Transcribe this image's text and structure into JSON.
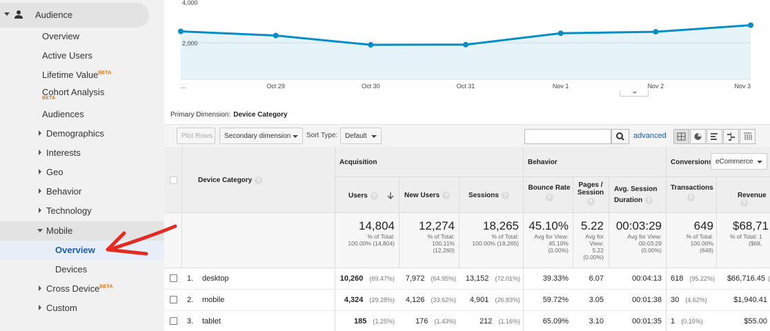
{
  "sidebar": {
    "audience": "Audience",
    "items": [
      {
        "label": "Overview"
      },
      {
        "label": "Active Users"
      },
      {
        "label": "Lifetime Value",
        "badge": "BETA"
      },
      {
        "label": "Cohort Analysis",
        "badge": "BETA"
      },
      {
        "label": "Audiences"
      },
      {
        "label": "Demographics"
      },
      {
        "label": "Interests"
      },
      {
        "label": "Geo"
      },
      {
        "label": "Behavior"
      },
      {
        "label": "Technology"
      },
      {
        "label": "Mobile"
      },
      {
        "label": "Overview"
      },
      {
        "label": "Devices"
      },
      {
        "label": "Cross Device",
        "badge": "BETA"
      },
      {
        "label": "Custom"
      }
    ]
  },
  "chart_data": {
    "type": "line",
    "categories": [
      "...",
      "Oct 29",
      "Oct 30",
      "Oct 31",
      "Nov 1",
      "Nov 2",
      "Nov 3"
    ],
    "series": [
      {
        "values": [
          2550,
          2350,
          1900,
          1910,
          2460,
          2530,
          2850
        ]
      }
    ],
    "y_ticks": [
      "4,000",
      "2,000"
    ],
    "ylim": [
      0,
      4000
    ],
    "grid": true,
    "color": "#058dc7"
  },
  "primary_dimension": {
    "label": "Primary Dimension:",
    "value": "Device Category"
  },
  "toolbar": {
    "plot_rows": "Plot Rows",
    "secondary_dimension": "Secondary dimension",
    "sort_type_label": "Sort Type:",
    "sort_type_value": "Default",
    "search_value": "",
    "advanced": "advanced"
  },
  "table": {
    "device_category": "Device Category",
    "groups": {
      "acquisition": "Acquisition",
      "behavior": "Behavior",
      "conversions": "Conversions"
    },
    "conversions_select": "eCommerce",
    "columns": {
      "users": "Users",
      "new_users": "New Users",
      "sessions": "Sessions",
      "bounce_rate": "Bounce Rate",
      "pages_session": [
        "Pages /",
        "Session"
      ],
      "avg_session": [
        "Avg. Session",
        "Duration"
      ],
      "transactions": "Transactions",
      "revenue": "Revenue"
    },
    "totals": {
      "users": {
        "value": "14,804",
        "sub": [
          "% of Total:",
          "100.00% (14,804)"
        ]
      },
      "new_users": {
        "value": "12,274",
        "sub": [
          "% of Total:",
          "100.11%",
          "(12,260)"
        ]
      },
      "sessions": {
        "value": "18,265",
        "sub": [
          "% of Total:",
          "100.00% (18,265)"
        ]
      },
      "bounce_rate": {
        "value": "45.10%",
        "sub": [
          "Avg for View:",
          "45.10%",
          "(0.00%)"
        ]
      },
      "pages_session": {
        "value": "5.22",
        "sub": [
          "Avg for",
          "View:",
          "5.22",
          "(0.00%)"
        ]
      },
      "avg_session": {
        "value": "00:03:29",
        "sub": [
          "Avg for View:",
          "00:03:29",
          "(0.00%)"
        ]
      },
      "transactions": {
        "value": "649",
        "sub": [
          "% of Total:",
          "100.00%",
          "(649)"
        ]
      },
      "revenue": {
        "value": "$68,71",
        "sub": [
          "% of Total: 1",
          "($68,"
        ]
      }
    },
    "rows": [
      {
        "idx": "1.",
        "name": "desktop",
        "users": "10,260",
        "users_pct": "(69.47%)",
        "new_users": "7,972",
        "new_users_pct": "(64.95%)",
        "sessions": "13,152",
        "sessions_pct": "(72.01%)",
        "bounce": "39.33%",
        "pages": "6.07",
        "duration": "00:04:13",
        "transactions": "618",
        "transactions_pct": "(95.22%)",
        "revenue": "$66,716.45",
        "revenue_pct": "("
      },
      {
        "idx": "2.",
        "name": "mobile",
        "users": "4,324",
        "users_pct": "(29.28%)",
        "new_users": "4,126",
        "new_users_pct": "(33.62%)",
        "sessions": "4,901",
        "sessions_pct": "(26.83%)",
        "bounce": "59.72%",
        "pages": "3.05",
        "duration": "00:01:38",
        "transactions": "30",
        "transactions_pct": "(4.62%)",
        "revenue": "$1,940.41",
        "revenue_pct": ""
      },
      {
        "idx": "3.",
        "name": "tablet",
        "users": "185",
        "users_pct": "(1.25%)",
        "new_users": "176",
        "new_users_pct": "(1.43%)",
        "sessions": "212",
        "sessions_pct": "(1.16%)",
        "bounce": "65.09%",
        "pages": "3.10",
        "duration": "00:01:35",
        "transactions": "1",
        "transactions_pct": "(0.15%)",
        "revenue": "$55.00",
        "revenue_pct": ""
      }
    ]
  },
  "colors": {
    "line": "#058dc7",
    "link": "#1a5aa8",
    "beta": "#e8710a",
    "annotation": "#e32b22"
  }
}
